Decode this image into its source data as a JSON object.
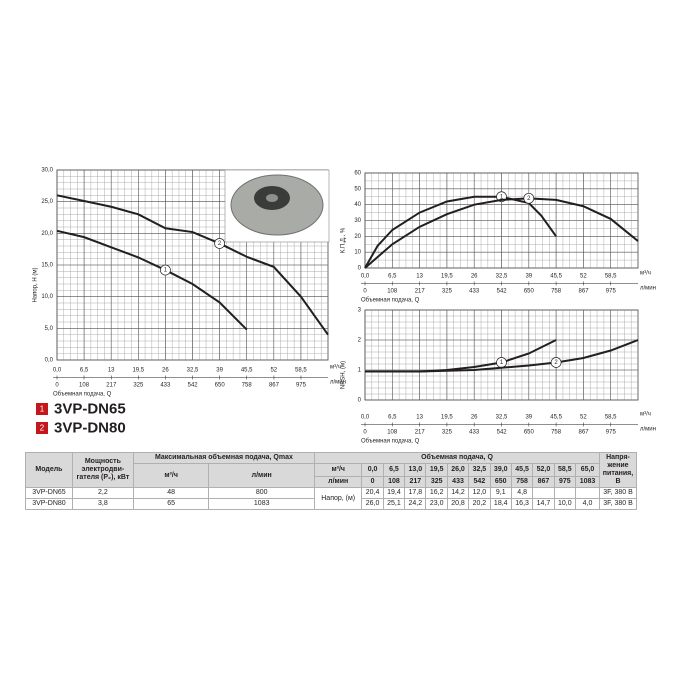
{
  "chart_data": [
    {
      "type": "line",
      "ylabel": "Напор, H (м)",
      "xlabel": "Объемная подача, Q",
      "xunit": "м³/ч",
      "x2unit": "л/мин",
      "xlim": [
        0,
        65
      ],
      "xticks": [
        {
          "value": 0,
          "label": "0,0"
        },
        {
          "value": 6.5,
          "label": "6,5"
        },
        13,
        {
          "value": 19.5,
          "label": "19,5"
        },
        26,
        {
          "value": 32.5,
          "label": "32,5"
        },
        39,
        {
          "value": 45.5,
          "label": "45,5"
        },
        52,
        {
          "value": 58.5,
          "label": "58,5"
        }
      ],
      "x2lim": [
        0,
        1083
      ],
      "x2ticks": [
        0,
        108,
        217,
        325,
        433,
        542,
        650,
        758,
        867,
        975
      ],
      "ylim": [
        0,
        30
      ],
      "yticks": [
        {
          "value": 0,
          "label": "0,0"
        },
        {
          "value": 5,
          "label": "5,0"
        },
        {
          "value": 10,
          "label": "10,0"
        },
        {
          "value": 15,
          "label": "15,0"
        },
        {
          "value": 20,
          "label": "20,0"
        },
        {
          "value": 25,
          "label": "25,0"
        },
        {
          "value": 30,
          "label": "30,0"
        }
      ],
      "grid": true,
      "series": [
        {
          "name": "3VP-DN65",
          "marker": "1",
          "color": "#231f20",
          "x": [
            0,
            6.5,
            13,
            19.5,
            26,
            32.5,
            39,
            45.5
          ],
          "values": [
            20.4,
            19.4,
            17.8,
            16.2,
            14.2,
            12.0,
            9.1,
            4.8
          ]
        },
        {
          "name": "3VP-DN80",
          "marker": "2",
          "color": "#231f20",
          "x": [
            0,
            6.5,
            13,
            19.5,
            26,
            32.5,
            39,
            45.5,
            52,
            58.5,
            65
          ],
          "values": [
            26.0,
            25.1,
            24.2,
            23.0,
            20.8,
            20.2,
            18.4,
            16.3,
            14.7,
            10.0,
            4.0
          ]
        }
      ]
    },
    {
      "type": "line",
      "ylabel": "К.П.Д., %",
      "xlabel": "Объемная подача, Q",
      "xunit": "м³/ч",
      "x2unit": "л/мин",
      "xlim": [
        0,
        65
      ],
      "xticks": [
        {
          "value": 0,
          "label": "0,0"
        },
        {
          "value": 6.5,
          "label": "6,5"
        },
        13,
        {
          "value": 19.5,
          "label": "19,5"
        },
        26,
        {
          "value": 32.5,
          "label": "32,5"
        },
        39,
        {
          "value": 45.5,
          "label": "45,5"
        },
        52,
        {
          "value": 58.5,
          "label": "58,5"
        }
      ],
      "x2lim": [
        0,
        1083
      ],
      "x2ticks": [
        0,
        108,
        217,
        325,
        433,
        542,
        650,
        758,
        867,
        975
      ],
      "ylim": [
        0,
        60
      ],
      "yticks": [
        0,
        10,
        20,
        30,
        40,
        50,
        60
      ],
      "grid": true,
      "series": [
        {
          "marker": "1",
          "color": "#231f20",
          "x": [
            0,
            3,
            6.5,
            13,
            19.5,
            26,
            32.5,
            39,
            42,
            45.5
          ],
          "values": [
            0,
            14,
            24,
            35,
            42,
            45,
            45,
            41,
            33,
            20
          ]
        },
        {
          "marker": "2",
          "color": "#231f20",
          "x": [
            0,
            6.5,
            13,
            19.5,
            26,
            32.5,
            39,
            45.5,
            52,
            58.5,
            65
          ],
          "values": [
            0,
            15,
            26,
            34,
            40,
            43,
            44,
            43,
            39,
            31,
            17
          ]
        }
      ]
    },
    {
      "type": "line",
      "ylabel": "NPSH, (м)",
      "xlabel": "Объемная подача, Q",
      "xunit": "м³/ч",
      "x2unit": "л/мин",
      "xlim": [
        0,
        65
      ],
      "xticks": [
        {
          "value": 0,
          "label": "0,0"
        },
        {
          "value": 6.5,
          "label": "6,5"
        },
        13,
        {
          "value": 19.5,
          "label": "19,5"
        },
        26,
        {
          "value": 32.5,
          "label": "32,5"
        },
        39,
        {
          "value": 45.5,
          "label": "45,5"
        },
        52,
        {
          "value": 58.5,
          "label": "58,5"
        }
      ],
      "x2lim": [
        0,
        1083
      ],
      "x2ticks": [
        0,
        108,
        217,
        325,
        433,
        542,
        650,
        758,
        867,
        975
      ],
      "ylim": [
        0,
        3
      ],
      "yticks": [
        0,
        1,
        2,
        3
      ],
      "grid": true,
      "series": [
        {
          "marker": "1",
          "color": "#231f20",
          "x": [
            0,
            13,
            19.5,
            26,
            32.5,
            39,
            45.5
          ],
          "values": [
            0.95,
            0.95,
            1.0,
            1.1,
            1.25,
            1.55,
            2.0
          ]
        },
        {
          "marker": "2",
          "color": "#231f20",
          "x": [
            0,
            13,
            26,
            39,
            45.5,
            52,
            58.5,
            65
          ],
          "values": [
            0.95,
            0.95,
            1.0,
            1.15,
            1.25,
            1.4,
            1.65,
            2.0
          ]
        }
      ]
    }
  ],
  "legend_color": "#c4161c",
  "table": {
    "headers": {
      "model": "Модель",
      "power": "Мощность электродви-гателя (P₂), кВт",
      "qmax": "Максимальная объемная подача, Qmax",
      "qmax_units": [
        "м³/ч",
        "л/мин"
      ],
      "flow": "Объемная подача, Q",
      "flow_units": [
        "м³/ч",
        "л/мин"
      ],
      "voltage": "Напря-жение питания, В",
      "head": "Напор, (м)"
    },
    "flow_m3h": [
      "0,0",
      "6,5",
      "13,0",
      "19,5",
      "26,0",
      "32,5",
      "39,0",
      "45,5",
      "52,0",
      "58,5",
      "65,0"
    ],
    "flow_lmin": [
      "0",
      "108",
      "217",
      "325",
      "433",
      "542",
      "650",
      "758",
      "867",
      "975",
      "1083"
    ],
    "rows": [
      {
        "model": "3VP-DN65",
        "power": "2,2",
        "qmax_m3h": "48",
        "qmax_lmin": "800",
        "head": [
          "20,4",
          "19,4",
          "17,8",
          "16,2",
          "14,2",
          "12,0",
          "9,1",
          "4,8",
          null,
          null,
          null
        ],
        "voltage": "3F, 380 В"
      },
      {
        "model": "3VP-DN80",
        "power": "3,8",
        "qmax_m3h": "65",
        "qmax_lmin": "1083",
        "head": [
          "26,0",
          "25,1",
          "24,2",
          "23,0",
          "20,8",
          "20,2",
          "18,4",
          "16,3",
          "14,7",
          "10,0",
          "4,0"
        ],
        "voltage": "3F, 380 В"
      }
    ]
  }
}
